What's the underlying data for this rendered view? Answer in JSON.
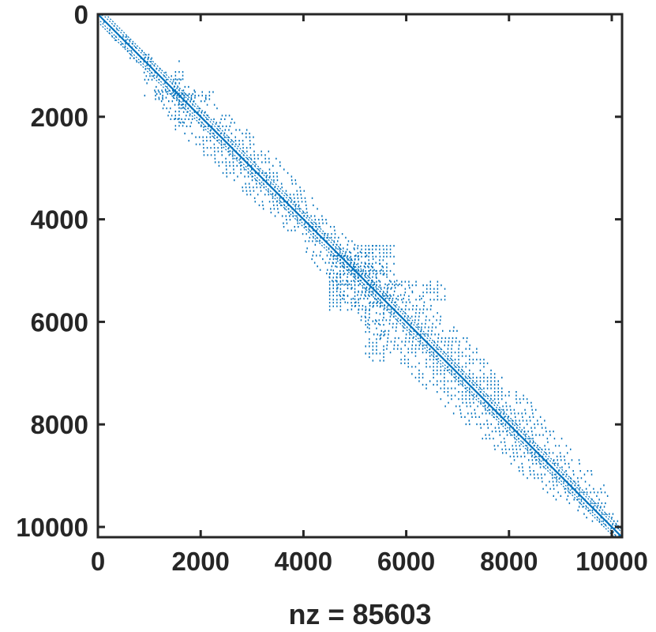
{
  "chart_data": {
    "type": "scatter",
    "title": "",
    "xlabel": "nz = 85603",
    "ylabel": "",
    "xlim": [
      0,
      10200
    ],
    "ylim": [
      0,
      10200
    ],
    "y_reversed": true,
    "grid": false,
    "marker_color": "#0072BD",
    "axis_color": "#262626",
    "x_ticks": [
      0,
      2000,
      4000,
      6000,
      8000,
      10000
    ],
    "x_tick_labels": [
      "0",
      "2000",
      "4000",
      "6000",
      "8000",
      "10000"
    ],
    "y_ticks": [
      0,
      2000,
      4000,
      6000,
      8000,
      10000
    ],
    "y_tick_labels": [
      "0",
      "2000",
      "4000",
      "6000",
      "8000",
      "10000"
    ],
    "nz": 85603,
    "matrix_size": 10200,
    "main_diagonal": {
      "from": [
        0,
        0
      ],
      "to": [
        10200,
        10200
      ]
    },
    "near_diagonal_offsets": [
      -150,
      -90,
      90,
      150
    ],
    "band_profile": [
      {
        "row": 0,
        "halfwidth": 80
      },
      {
        "row": 1000,
        "halfwidth": 250
      },
      {
        "row": 1600,
        "halfwidth": 500
      },
      {
        "row": 2300,
        "halfwidth": 700
      },
      {
        "row": 3200,
        "halfwidth": 650
      },
      {
        "row": 4300,
        "halfwidth": 500
      },
      {
        "row": 5600,
        "halfwidth": 800
      },
      {
        "row": 6500,
        "halfwidth": 900
      },
      {
        "row": 7500,
        "halfwidth": 900
      },
      {
        "row": 8500,
        "halfwidth": 750
      },
      {
        "row": 9300,
        "halfwidth": 650
      },
      {
        "row": 9800,
        "halfwidth": 300
      },
      {
        "row": 10200,
        "halfwidth": 60
      }
    ],
    "dense_blocks": [
      {
        "rows": [
          5200,
          5600
        ],
        "cols": [
          4500,
          6800
        ]
      },
      {
        "rows": [
          4500,
          5100
        ],
        "cols": [
          4700,
          5800
        ]
      },
      {
        "rows": [
          1500,
          1700
        ],
        "cols": [
          900,
          2300
        ]
      }
    ]
  }
}
